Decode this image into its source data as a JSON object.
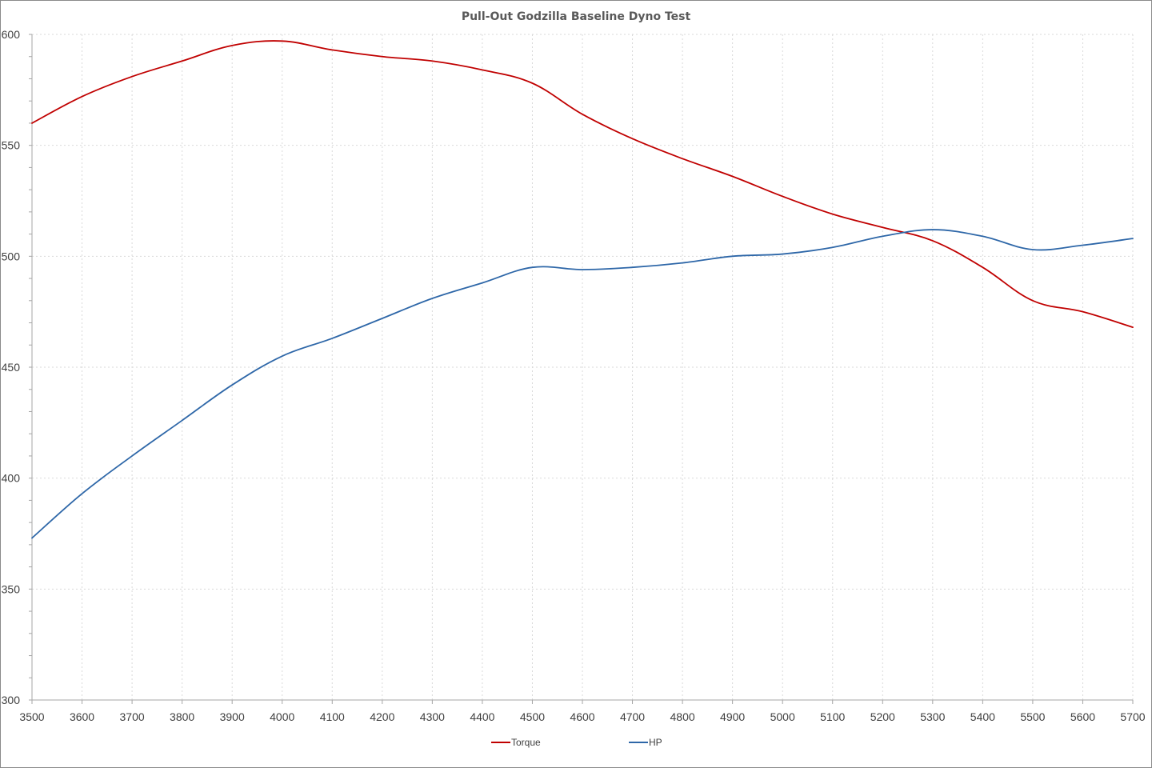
{
  "chart_data": {
    "type": "line",
    "title": "Pull-Out Godzilla Baseline Dyno Test",
    "xlabel": "",
    "ylabel": "",
    "x": [
      3500,
      3600,
      3700,
      3800,
      3900,
      4000,
      4100,
      4200,
      4300,
      4400,
      4500,
      4600,
      4700,
      4800,
      4900,
      5000,
      5100,
      5200,
      5300,
      5400,
      5500,
      5600,
      5700
    ],
    "xlim": [
      3500,
      5700
    ],
    "ylim": [
      300,
      600
    ],
    "yticks": [
      300,
      350,
      400,
      450,
      500,
      550,
      600
    ],
    "grid": true,
    "legend_position": "bottom",
    "series": [
      {
        "name": "Torque",
        "color": "#c00000",
        "values": [
          560,
          572,
          581,
          588,
          595,
          597,
          593,
          590,
          588,
          584,
          578,
          564,
          553,
          544,
          536,
          527,
          519,
          513,
          507,
          495,
          480,
          475,
          468
        ]
      },
      {
        "name": "HP",
        "color": "#2e67a8",
        "values": [
          373,
          393,
          410,
          426,
          442,
          455,
          463,
          472,
          481,
          488,
          495,
          494,
          495,
          497,
          500,
          501,
          504,
          509,
          512,
          509,
          503,
          505,
          508
        ]
      }
    ]
  }
}
